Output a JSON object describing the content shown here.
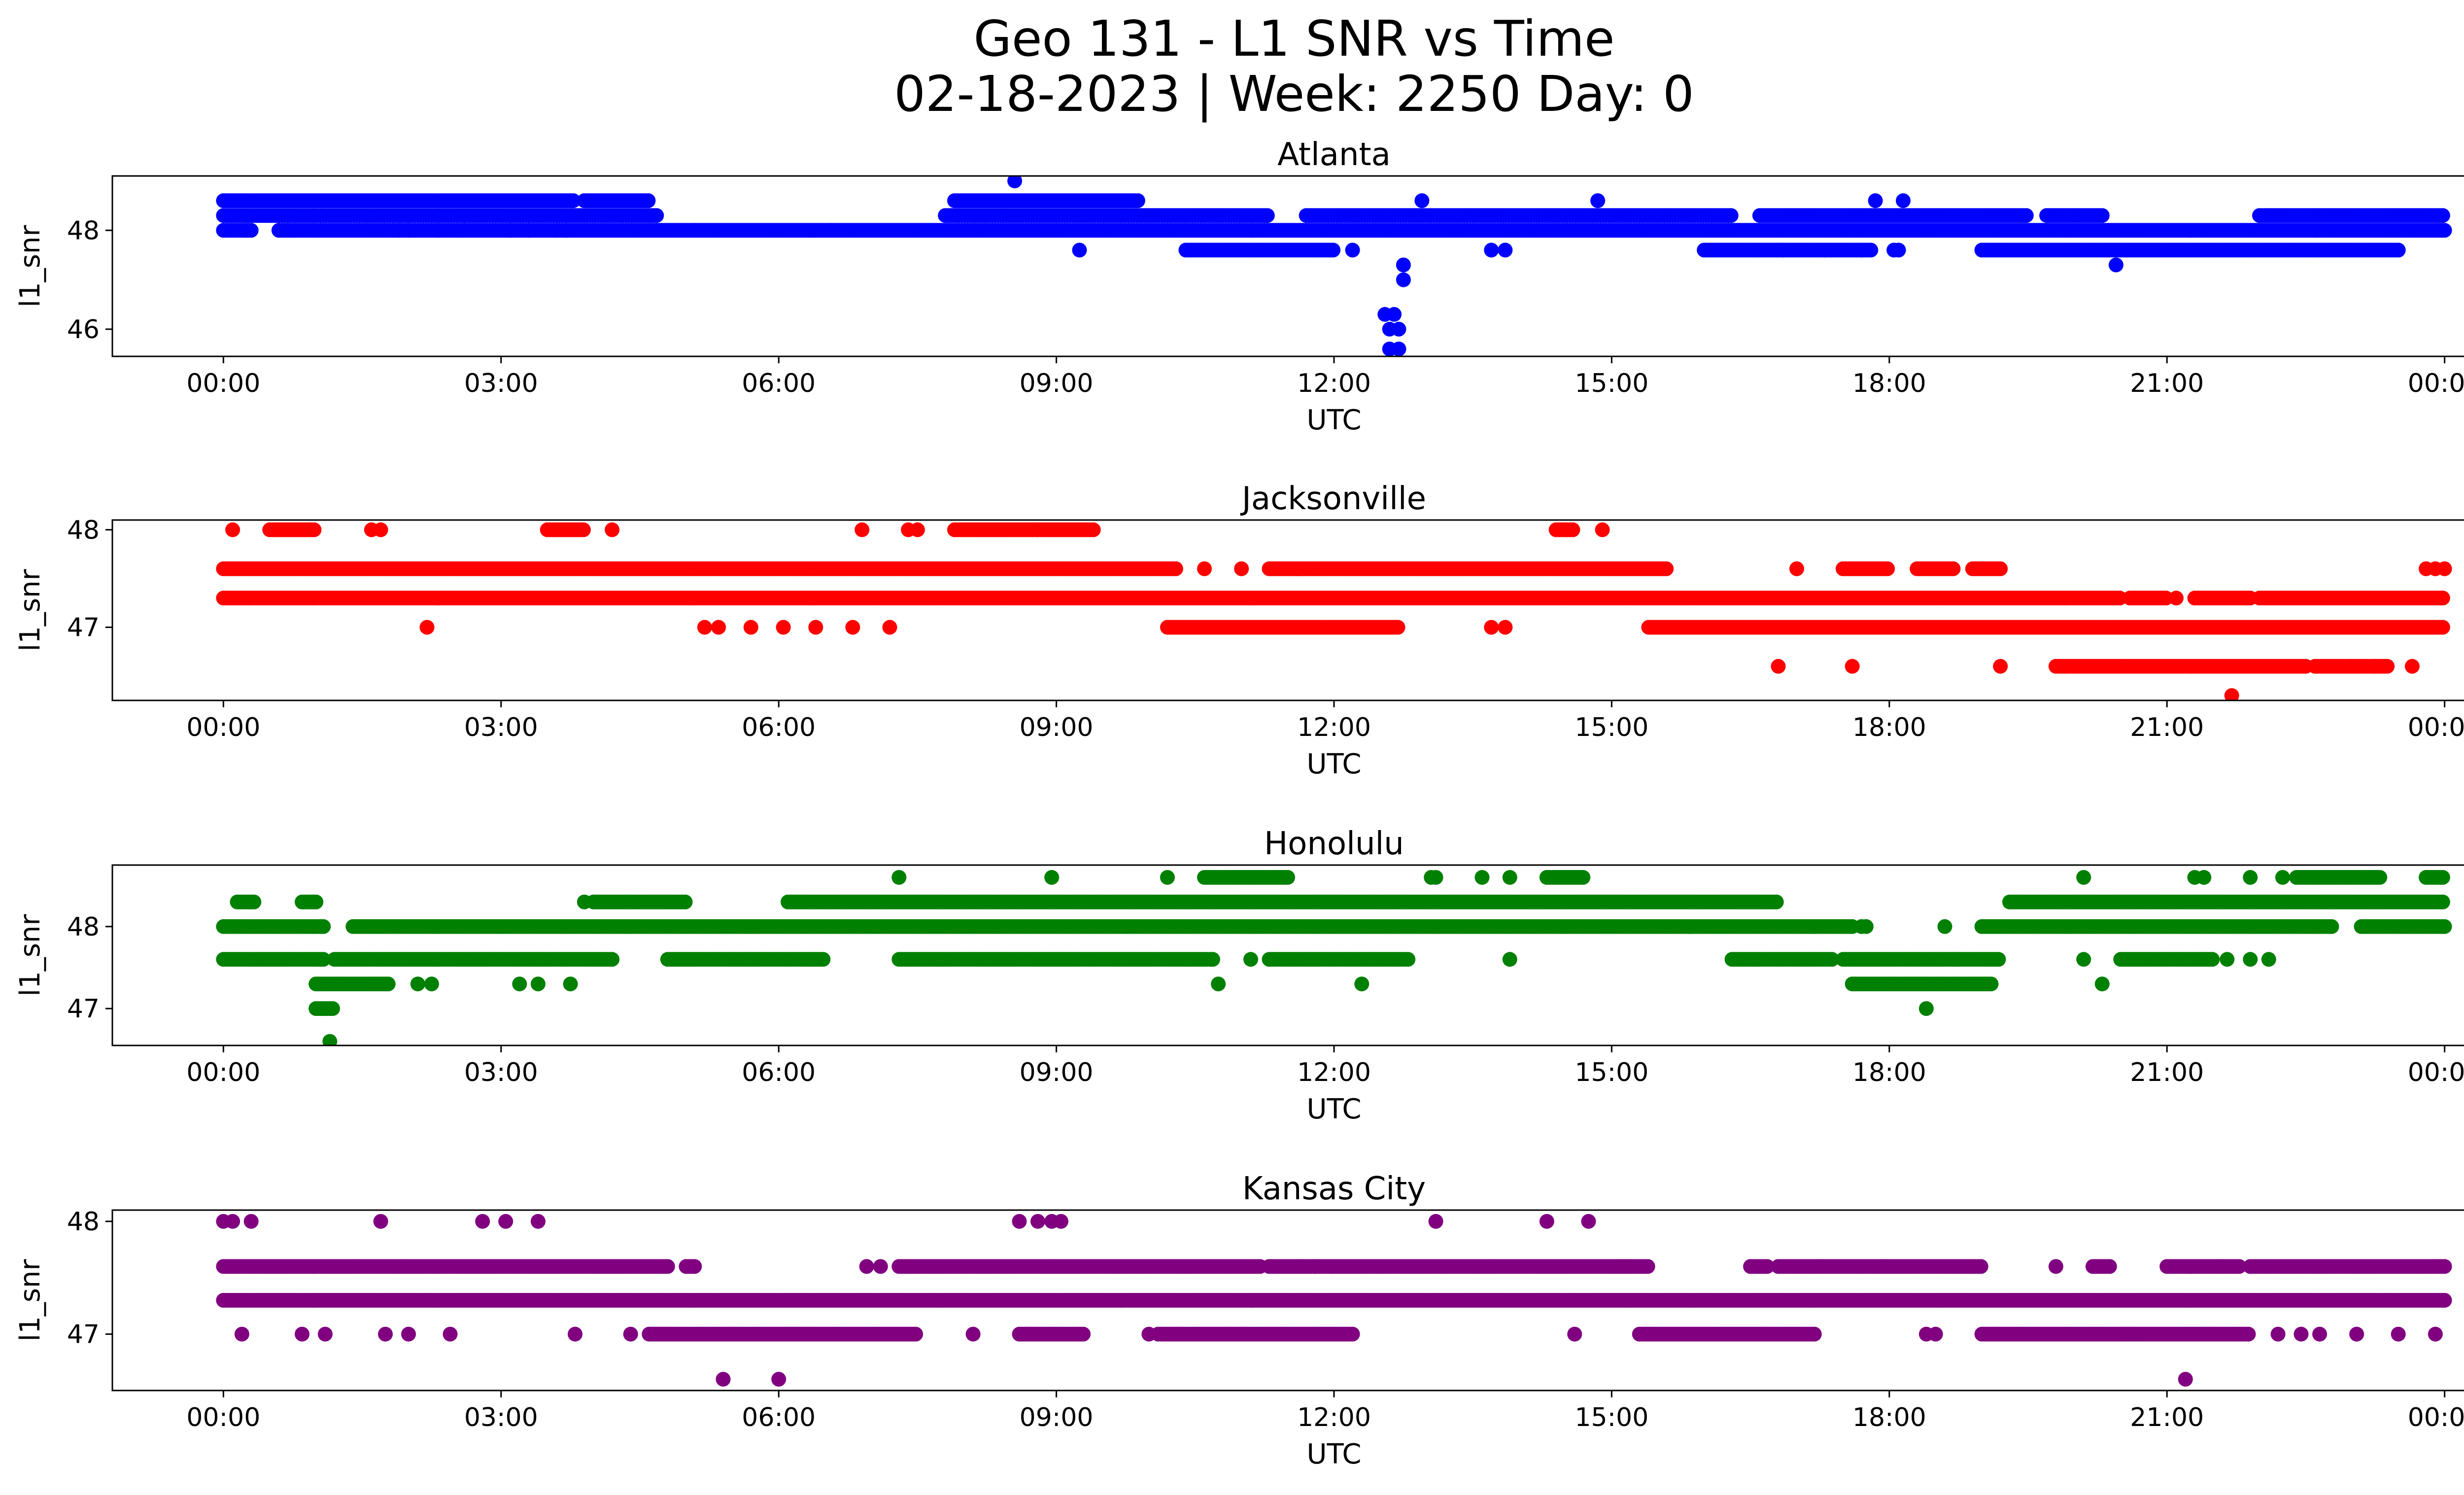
{
  "figure": {
    "title_line1": "Geo 131 - L1 SNR vs Time",
    "title_line2": "02-18-2023 | Week: 2250 Day: 0"
  },
  "chart_data": [
    {
      "type": "scatter",
      "title": "Atlanta",
      "xlabel": "UTC",
      "ylabel": "l1_snr",
      "color": "#0000ff",
      "x_unit": "hours UTC",
      "xlim": [
        -1.2,
        25.2
      ],
      "ylim": [
        45.45,
        49.1
      ],
      "yticks": [
        46,
        48
      ],
      "xticks": [
        "00:00",
        "03:00",
        "06:00",
        "09:00",
        "12:00",
        "15:00",
        "18:00",
        "21:00",
        "00:00"
      ],
      "bands": [
        {
          "y": 48.6,
          "segments": [
            [
              0.0,
              3.8
            ],
            [
              3.9,
              4.6
            ],
            [
              7.9,
              9.9
            ]
          ]
        },
        {
          "y": 48.3,
          "segments": [
            [
              0.0,
              4.7
            ],
            [
              7.8,
              11.3
            ],
            [
              11.7,
              16.3
            ],
            [
              16.6,
              19.5
            ],
            [
              19.7,
              20.3
            ],
            [
              22.0,
              24.0
            ]
          ]
        },
        {
          "y": 48.0,
          "segments": [
            [
              0.0,
              0.3
            ],
            [
              0.6,
              24.0
            ]
          ]
        },
        {
          "y": 47.6,
          "segments": [
            [
              10.4,
              12.0
            ],
            [
              16.0,
              17.8
            ],
            [
              19.0,
              23.5
            ]
          ]
        }
      ],
      "points": [
        [
          0.25,
          48.0
        ],
        [
          0.6,
          48.0
        ],
        [
          0.7,
          48.0
        ],
        [
          1.9,
          48.0
        ],
        [
          2.0,
          48.0
        ],
        [
          2.6,
          48.0
        ],
        [
          3.1,
          48.0
        ],
        [
          3.3,
          48.0
        ],
        [
          3.6,
          48.0
        ],
        [
          3.7,
          48.0
        ],
        [
          8.55,
          49.0
        ],
        [
          9.25,
          47.6
        ],
        [
          12.2,
          47.6
        ],
        [
          12.55,
          46.3
        ],
        [
          12.6,
          46.0
        ],
        [
          12.6,
          45.6
        ],
        [
          12.65,
          46.3
        ],
        [
          12.7,
          46.0
        ],
        [
          12.7,
          45.6
        ],
        [
          12.75,
          47.3
        ],
        [
          12.75,
          47.0
        ],
        [
          12.95,
          48.6
        ],
        [
          13.7,
          47.6
        ],
        [
          13.85,
          47.6
        ],
        [
          14.85,
          48.6
        ],
        [
          16.85,
          47.6
        ],
        [
          17.3,
          47.6
        ],
        [
          17.7,
          47.6
        ],
        [
          17.85,
          48.6
        ],
        [
          18.05,
          47.6
        ],
        [
          18.1,
          47.6
        ],
        [
          18.15,
          48.6
        ],
        [
          20.45,
          47.3
        ]
      ]
    },
    {
      "type": "scatter",
      "title": "Jacksonville",
      "xlabel": "UTC",
      "ylabel": "l1_snr",
      "color": "#ff0000",
      "x_unit": "hours UTC",
      "xlim": [
        -1.2,
        25.2
      ],
      "ylim": [
        46.25,
        48.1
      ],
      "yticks": [
        47,
        48
      ],
      "xticks": [
        "00:00",
        "03:00",
        "06:00",
        "09:00",
        "12:00",
        "15:00",
        "18:00",
        "21:00",
        "00:00"
      ],
      "bands": [
        {
          "y": 48.0,
          "segments": [
            [
              0.5,
              1.0
            ],
            [
              3.5,
              3.9
            ],
            [
              7.9,
              8.8
            ],
            [
              8.8,
              9.4
            ],
            [
              14.4,
              14.6
            ]
          ]
        },
        {
          "y": 47.6,
          "segments": [
            [
              0.0,
              10.3
            ],
            [
              11.3,
              11.6
            ],
            [
              11.6,
              15.6
            ],
            [
              17.5,
              18.0
            ],
            [
              18.3,
              18.7
            ],
            [
              18.9,
              19.2
            ]
          ]
        },
        {
          "y": 47.3,
          "segments": [
            [
              0.0,
              20.5
            ],
            [
              20.6,
              21.0
            ],
            [
              21.3,
              21.9
            ],
            [
              22.0,
              24.0
            ]
          ]
        },
        {
          "y": 47.0,
          "segments": [
            [
              10.2,
              12.7
            ],
            [
              15.4,
              24.0
            ]
          ]
        },
        {
          "y": 46.6,
          "segments": [
            [
              19.8,
              22.5
            ],
            [
              22.6,
              23.4
            ]
          ]
        }
      ],
      "points": [
        [
          0.1,
          48.0
        ],
        [
          1.6,
          48.0
        ],
        [
          1.7,
          48.0
        ],
        [
          4.2,
          48.0
        ],
        [
          6.9,
          48.0
        ],
        [
          7.4,
          48.0
        ],
        [
          7.5,
          48.0
        ],
        [
          14.9,
          48.0
        ],
        [
          2.2,
          47.0
        ],
        [
          5.2,
          47.0
        ],
        [
          5.35,
          47.0
        ],
        [
          5.7,
          47.0
        ],
        [
          6.05,
          47.0
        ],
        [
          6.4,
          47.0
        ],
        [
          6.8,
          47.0
        ],
        [
          7.2,
          47.0
        ],
        [
          13.7,
          47.0
        ],
        [
          13.85,
          47.0
        ],
        [
          10.6,
          47.6
        ],
        [
          11.0,
          47.6
        ],
        [
          17.0,
          47.6
        ],
        [
          16.8,
          46.6
        ],
        [
          17.6,
          46.6
        ],
        [
          19.2,
          46.6
        ],
        [
          23.0,
          46.6
        ],
        [
          23.25,
          46.6
        ],
        [
          23.65,
          46.6
        ],
        [
          21.7,
          46.3
        ],
        [
          23.8,
          47.6
        ],
        [
          23.9,
          47.6
        ],
        [
          24.0,
          47.6
        ],
        [
          21.1,
          47.3
        ]
      ]
    },
    {
      "type": "scatter",
      "title": "Honolulu",
      "xlabel": "UTC",
      "ylabel": "l1_snr",
      "color": "#008000",
      "x_unit": "hours UTC",
      "xlim": [
        -1.2,
        25.2
      ],
      "ylim": [
        46.55,
        48.75
      ],
      "yticks": [
        47,
        48
      ],
      "xticks": [
        "00:00",
        "03:00",
        "06:00",
        "09:00",
        "12:00",
        "15:00",
        "18:00",
        "21:00",
        "00:00"
      ],
      "bands": [
        {
          "y": 48.6,
          "segments": [
            [
              10.6,
              11.5
            ],
            [
              14.3,
              14.7
            ],
            [
              22.4,
              23.3
            ],
            [
              23.8,
              24.0
            ]
          ]
        },
        {
          "y": 48.3,
          "segments": [
            [
              0.15,
              0.35
            ],
            [
              0.85,
              1.0
            ],
            [
              4.0,
              5.0
            ],
            [
              6.1,
              16.8
            ],
            [
              19.3,
              24.0
            ]
          ]
        },
        {
          "y": 48.0,
          "segments": [
            [
              0.0,
              1.1
            ],
            [
              1.4,
              17.6
            ],
            [
              19.0,
              22.8
            ],
            [
              23.1,
              24.0
            ]
          ]
        },
        {
          "y": 47.6,
          "segments": [
            [
              0.0,
              1.1
            ],
            [
              1.2,
              4.2
            ],
            [
              4.8,
              6.5
            ],
            [
              7.3,
              10.7
            ],
            [
              11.3,
              12.8
            ],
            [
              16.3,
              17.4
            ],
            [
              17.5,
              19.2
            ],
            [
              20.5,
              21.5
            ]
          ]
        },
        {
          "y": 47.3,
          "segments": [
            [
              1.0,
              1.8
            ],
            [
              17.6,
              19.1
            ]
          ]
        },
        {
          "y": 47.0,
          "segments": [
            [
              1.0,
              1.2
            ]
          ]
        }
      ],
      "points": [
        [
          7.3,
          48.6
        ],
        [
          8.95,
          48.6
        ],
        [
          10.2,
          48.6
        ],
        [
          13.05,
          48.6
        ],
        [
          13.1,
          48.6
        ],
        [
          13.6,
          48.6
        ],
        [
          13.9,
          48.6
        ],
        [
          20.1,
          48.6
        ],
        [
          21.3,
          48.6
        ],
        [
          21.4,
          48.6
        ],
        [
          21.9,
          48.6
        ],
        [
          22.25,
          48.6
        ],
        [
          3.9,
          48.3
        ],
        [
          11.1,
          47.6
        ],
        [
          13.9,
          47.6
        ],
        [
          18.7,
          47.6
        ],
        [
          20.1,
          47.6
        ],
        [
          21.65,
          47.6
        ],
        [
          21.9,
          47.6
        ],
        [
          22.1,
          47.6
        ],
        [
          2.1,
          47.3
        ],
        [
          2.25,
          47.3
        ],
        [
          3.2,
          47.3
        ],
        [
          3.4,
          47.3
        ],
        [
          3.75,
          47.3
        ],
        [
          10.75,
          47.3
        ],
        [
          12.3,
          47.3
        ],
        [
          20.3,
          47.3
        ],
        [
          18.4,
          47.0
        ],
        [
          1.15,
          46.6
        ],
        [
          17.7,
          48.0
        ],
        [
          17.75,
          48.0
        ],
        [
          18.6,
          48.0
        ]
      ]
    },
    {
      "type": "scatter",
      "title": "Kansas City",
      "xlabel": "UTC",
      "ylabel": "l1_snr",
      "color": "#800080",
      "x_unit": "hours UTC",
      "xlim": [
        -1.2,
        25.2
      ],
      "ylim": [
        46.5,
        48.1
      ],
      "yticks": [
        47,
        48
      ],
      "xticks": [
        "00:00",
        "03:00",
        "06:00",
        "09:00",
        "12:00",
        "15:00",
        "18:00",
        "21:00",
        "00:00"
      ],
      "bands": [
        {
          "y": 47.6,
          "segments": [
            [
              0.0,
              4.8
            ],
            [
              5.0,
              5.1
            ],
            [
              7.3,
              11.2
            ],
            [
              11.3,
              12.0
            ],
            [
              12.0,
              15.4
            ],
            [
              16.5,
              16.7
            ],
            [
              16.8,
              19.0
            ],
            [
              20.2,
              20.4
            ],
            [
              21.0,
              21.8
            ],
            [
              21.9,
              24.0
            ]
          ]
        },
        {
          "y": 47.3,
          "segments": [
            [
              0.0,
              24.0
            ]
          ]
        },
        {
          "y": 47.0,
          "segments": [
            [
              4.6,
              7.5
            ],
            [
              8.6,
              9.3
            ],
            [
              10.1,
              12.2
            ],
            [
              15.3,
              17.2
            ],
            [
              19.0,
              21.9
            ]
          ]
        }
      ],
      "points": [
        [
          0.0,
          48.0
        ],
        [
          0.1,
          48.0
        ],
        [
          0.3,
          48.0
        ],
        [
          1.7,
          48.0
        ],
        [
          2.8,
          48.0
        ],
        [
          3.05,
          48.0
        ],
        [
          3.4,
          48.0
        ],
        [
          8.6,
          48.0
        ],
        [
          8.8,
          48.0
        ],
        [
          8.95,
          48.0
        ],
        [
          9.05,
          48.0
        ],
        [
          13.1,
          48.0
        ],
        [
          14.3,
          48.0
        ],
        [
          14.75,
          48.0
        ],
        [
          0.2,
          47.0
        ],
        [
          0.85,
          47.0
        ],
        [
          1.1,
          47.0
        ],
        [
          1.75,
          47.0
        ],
        [
          2.0,
          47.0
        ],
        [
          2.45,
          47.0
        ],
        [
          3.8,
          47.0
        ],
        [
          4.4,
          47.0
        ],
        [
          8.1,
          47.0
        ],
        [
          10.0,
          47.0
        ],
        [
          14.6,
          47.0
        ],
        [
          18.4,
          47.0
        ],
        [
          18.5,
          47.0
        ],
        [
          22.2,
          47.0
        ],
        [
          22.45,
          47.0
        ],
        [
          22.65,
          47.0
        ],
        [
          23.05,
          47.0
        ],
        [
          23.5,
          47.0
        ],
        [
          23.9,
          47.0
        ],
        [
          6.95,
          47.6
        ],
        [
          7.1,
          47.6
        ],
        [
          11.8,
          47.6
        ],
        [
          19.8,
          47.6
        ],
        [
          5.4,
          46.6
        ],
        [
          6.0,
          46.6
        ],
        [
          21.2,
          46.6
        ]
      ]
    }
  ]
}
